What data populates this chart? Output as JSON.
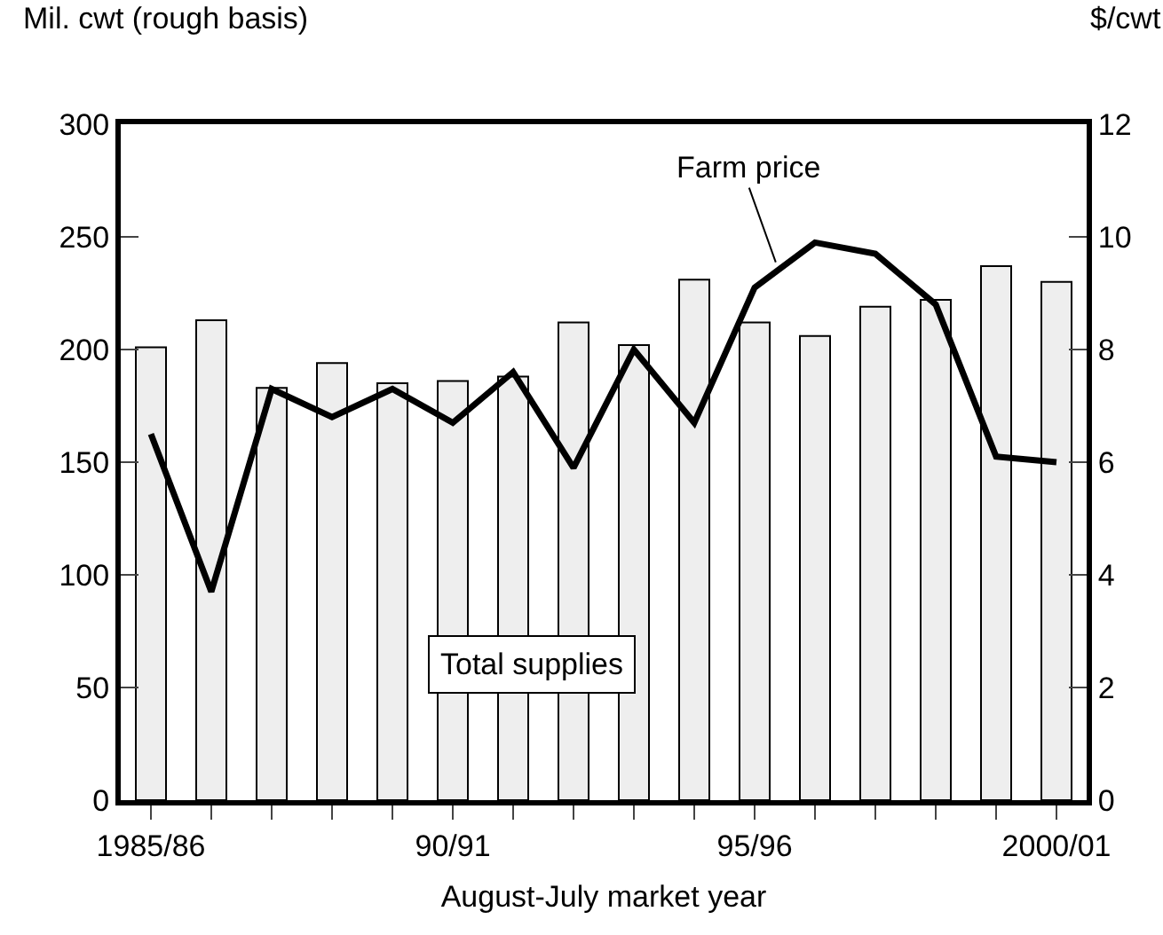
{
  "chart_data": {
    "type": "bar",
    "ylabel": "Mil. cwt (rough basis)",
    "y2label": "$/cwt",
    "xlabel": "August-July market year",
    "categories": [
      "1985/86",
      null,
      null,
      null,
      null,
      "90/91",
      null,
      null,
      null,
      null,
      "95/96",
      null,
      null,
      null,
      null,
      "2000/01"
    ],
    "series": [
      {
        "name": "Total supplies",
        "color": "#eeeeee",
        "values": [
          201,
          213,
          183,
          194,
          185,
          186,
          188,
          212,
          202,
          231,
          212,
          206,
          219,
          222,
          237,
          230
        ]
      },
      {
        "name": "Farm price",
        "type": "line",
        "axis": "y2",
        "color": "#000000",
        "values": [
          6.5,
          3.7,
          7.3,
          6.8,
          7.3,
          6.7,
          7.6,
          5.9,
          8.0,
          6.7,
          9.1,
          9.9,
          9.7,
          8.8,
          6.1,
          6.0
        ]
      }
    ],
    "ylim": [
      0,
      300
    ],
    "yticks": [
      0,
      50,
      100,
      150,
      200,
      250,
      300
    ],
    "y2lim": [
      0,
      12
    ],
    "y2ticks": [
      0,
      2,
      4,
      6,
      8,
      10,
      12
    ],
    "grid": false,
    "legend": false
  }
}
